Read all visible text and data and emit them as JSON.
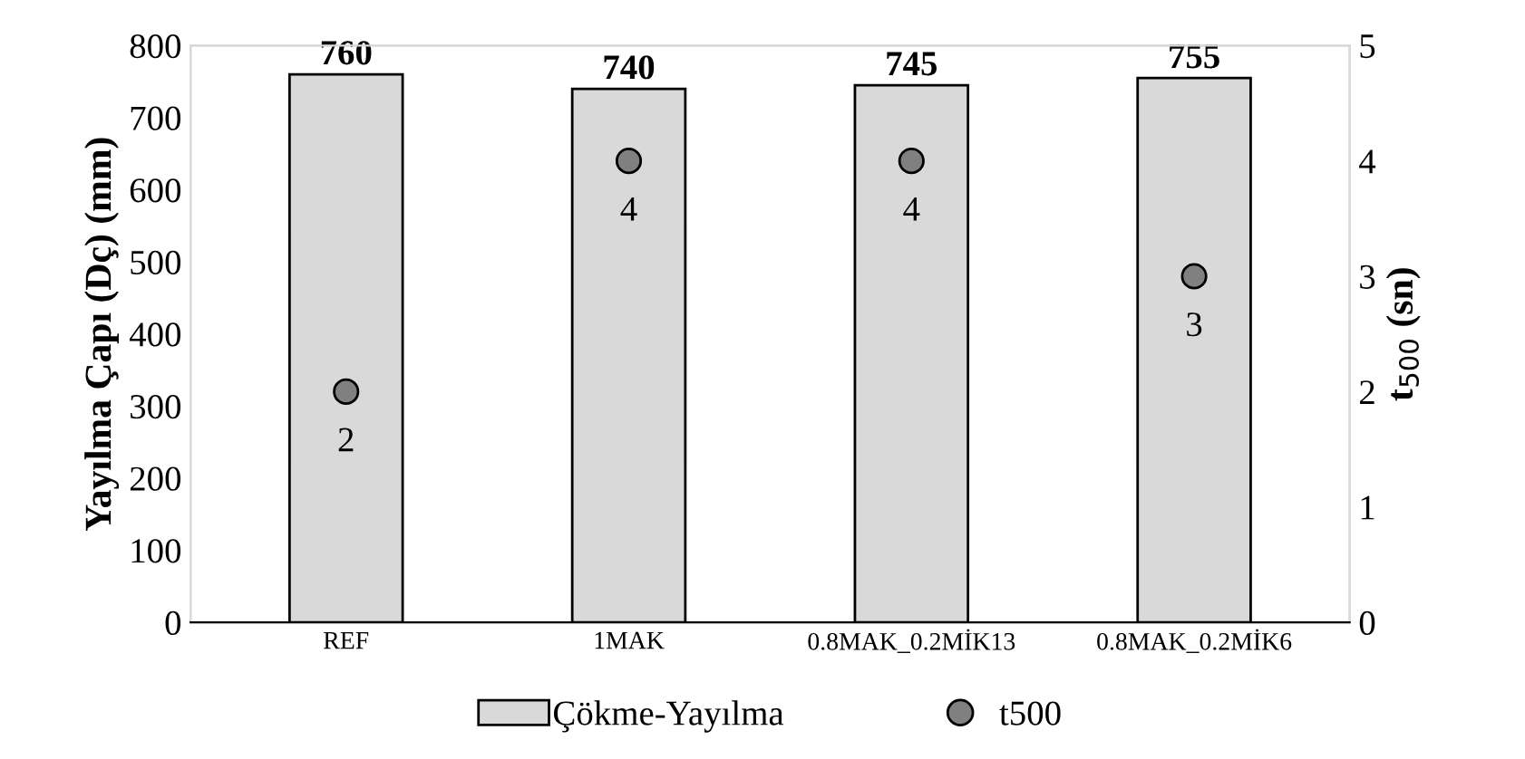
{
  "chart_data": {
    "type": "bar",
    "categories": [
      "REF",
      "1MAK",
      "0.8MAK_0.2MİK13",
      "0.8MAK_0.2MİK6"
    ],
    "ylabel": "Yayılma Çapı (Dç) (mm)",
    "y2label": "t$_{500}$ (sn)",
    "ylim": [
      0,
      800
    ],
    "yticks": [
      0,
      100,
      200,
      300,
      400,
      500,
      600,
      700,
      800
    ],
    "y2lim": [
      0,
      5
    ],
    "y2ticks": [
      0,
      1,
      2,
      3,
      4,
      5
    ],
    "series": [
      {
        "name": "Çökme-Yayılma",
        "color": "#d9d9d9",
        "values": [
          760,
          740,
          745,
          755
        ],
        "data_labels": true
      },
      {
        "name": "t500",
        "type": "scatter",
        "axis": "y2",
        "color": "#808080",
        "values": [
          2,
          4,
          4,
          3
        ],
        "data_labels": true,
        "marker": "circle"
      }
    ],
    "legend": "bottom",
    "grid": false
  }
}
